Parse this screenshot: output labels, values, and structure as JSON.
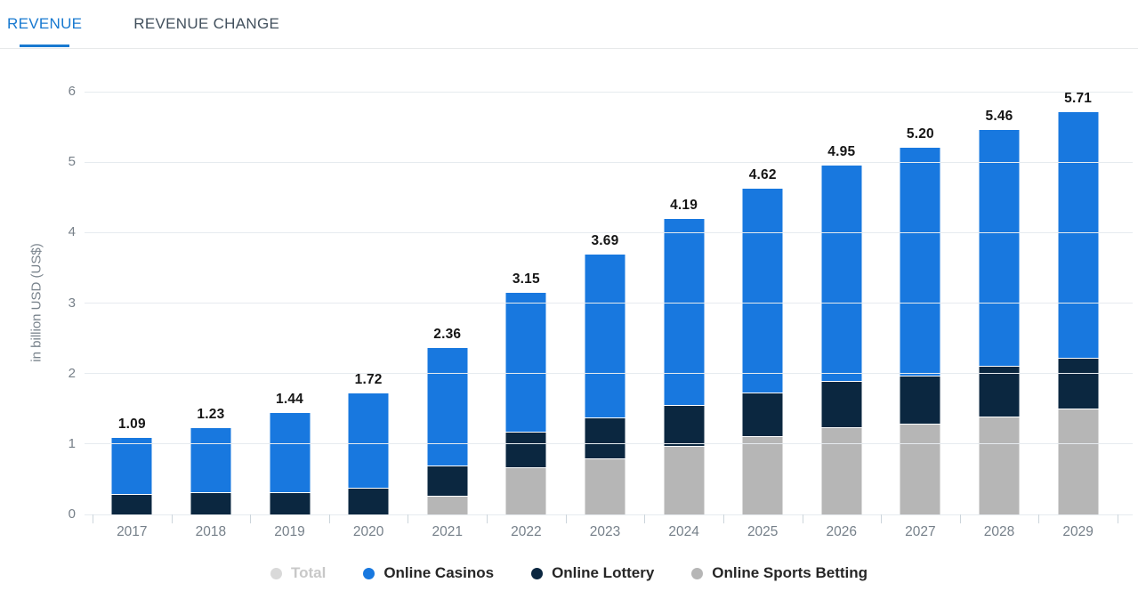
{
  "tabs": [
    {
      "label": "REVENUE",
      "active": true
    },
    {
      "label": "REVENUE CHANGE",
      "active": false
    }
  ],
  "colors": {
    "accent_blue": "#1879d0",
    "online_casinos": "#1878df",
    "online_lottery": "#0b2740",
    "online_sports_betting": "#b6b6b6",
    "total_disabled": "#d9d9d9",
    "gridline": "#e6ebef",
    "axis_text": "#76808a"
  },
  "chart_data": {
    "type": "bar",
    "stacked": true,
    "title": "",
    "xlabel": "",
    "ylabel": "in billion USD (US$)",
    "ylim": [
      0,
      6
    ],
    "yticks": [
      0,
      1,
      2,
      3,
      4,
      5,
      6
    ],
    "grid": true,
    "legend_position": "bottom",
    "categories": [
      "2017",
      "2018",
      "2019",
      "2020",
      "2021",
      "2022",
      "2023",
      "2024",
      "2025",
      "2026",
      "2027",
      "2028",
      "2029"
    ],
    "series": [
      {
        "name": "Online Sports Betting",
        "color": "#b6b6b6",
        "values": [
          0,
          0,
          0,
          0,
          0.27,
          0.67,
          0.8,
          0.97,
          1.11,
          1.24,
          1.29,
          1.39,
          1.5
        ]
      },
      {
        "name": "Online Lottery",
        "color": "#0b2740",
        "values": [
          0.29,
          0.31,
          0.32,
          0.38,
          0.43,
          0.5,
          0.58,
          0.59,
          0.62,
          0.65,
          0.68,
          0.72,
          0.72
        ]
      },
      {
        "name": "Online Casinos",
        "color": "#1878df",
        "values": [
          0.8,
          0.92,
          1.12,
          1.34,
          1.66,
          1.98,
          2.31,
          2.63,
          2.89,
          3.06,
          3.23,
          3.35,
          3.49
        ]
      }
    ],
    "totals": [
      1.09,
      1.23,
      1.44,
      1.72,
      2.36,
      3.15,
      3.69,
      4.19,
      4.62,
      4.95,
      5.2,
      5.46,
      5.71
    ],
    "total_labels": [
      "1.09",
      "1.23",
      "1.44",
      "1.72",
      "2.36",
      "3.15",
      "3.69",
      "4.19",
      "4.62",
      "4.95",
      "5.20",
      "5.46",
      "5.71"
    ],
    "legend": [
      {
        "label": "Total",
        "color": "#d9d9d9",
        "disabled": true
      },
      {
        "label": "Online Casinos",
        "color": "#1878df",
        "disabled": false
      },
      {
        "label": "Online Lottery",
        "color": "#0b2740",
        "disabled": false
      },
      {
        "label": "Online Sports Betting",
        "color": "#b6b6b6",
        "disabled": false
      }
    ]
  }
}
